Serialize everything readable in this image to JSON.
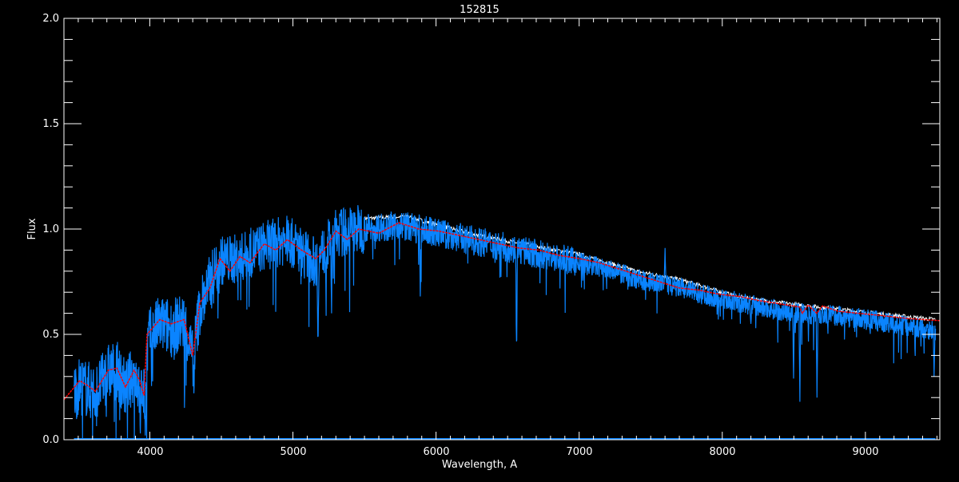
{
  "chart_data": {
    "type": "line",
    "title": "152815",
    "xlabel": "Wavelength, A",
    "ylabel": "Flux",
    "xlim": [
      3400,
      9520
    ],
    "ylim": [
      0.0,
      2.0
    ],
    "x_ticks": [
      "4000",
      "5000",
      "6000",
      "7000",
      "8000",
      "9000"
    ],
    "y_ticks": [
      "0.0",
      "0.5",
      "1.0",
      "1.5",
      "2.0"
    ],
    "grid": false,
    "background": "#000000",
    "series": [
      {
        "role": "observed",
        "color": "#0a84ff",
        "x_range": [
          3470,
          9490
        ],
        "continuum": [
          [
            3470,
            0.22
          ],
          [
            3510,
            0.26
          ],
          [
            3620,
            0.22
          ],
          [
            3710,
            0.32
          ],
          [
            3770,
            0.33
          ],
          [
            3830,
            0.24
          ],
          [
            3890,
            0.32
          ],
          [
            3960,
            0.2
          ],
          [
            3990,
            0.48
          ],
          [
            4070,
            0.55
          ],
          [
            4150,
            0.53
          ],
          [
            4240,
            0.56
          ],
          [
            4300,
            0.38
          ],
          [
            4350,
            0.63
          ],
          [
            4490,
            0.85
          ],
          [
            4630,
            0.86
          ],
          [
            4800,
            0.92
          ],
          [
            4960,
            0.95
          ],
          [
            5160,
            0.84
          ],
          [
            5300,
            0.98
          ],
          [
            5460,
            1.0
          ],
          [
            5740,
            1.02
          ],
          [
            6020,
            0.98
          ],
          [
            6300,
            0.94
          ],
          [
            6580,
            0.9
          ],
          [
            6860,
            0.86
          ],
          [
            7140,
            0.82
          ],
          [
            7420,
            0.76
          ],
          [
            7700,
            0.72
          ],
          [
            7980,
            0.67
          ],
          [
            8260,
            0.63
          ],
          [
            8540,
            0.6
          ],
          [
            8810,
            0.59
          ],
          [
            9100,
            0.56
          ],
          [
            9490,
            0.52
          ]
        ],
        "lines": [
          [
            3934,
            0.03
          ],
          [
            3968,
            0.02
          ],
          [
            4308,
            0.22
          ],
          [
            5175,
            0.42
          ],
          [
            5270,
            0.6
          ],
          [
            5890,
            0.68
          ],
          [
            6563,
            0.4
          ],
          [
            7600,
            0.91
          ],
          [
            8200,
            0.55
          ],
          [
            8498,
            0.29
          ],
          [
            8542,
            0.18
          ],
          [
            8662,
            0.2
          ],
          [
            9480,
            0.3
          ]
        ]
      },
      {
        "role": "comparison",
        "color": "#ffffff",
        "continuum": [
          [
            5500,
            1.05
          ],
          [
            5800,
            1.06
          ],
          [
            6000,
            1.02
          ],
          [
            6300,
            0.97
          ],
          [
            6600,
            0.93
          ],
          [
            7000,
            0.88
          ],
          [
            7400,
            0.8
          ],
          [
            7700,
            0.76
          ],
          [
            7900,
            0.72
          ],
          [
            8100,
            0.68
          ],
          [
            8400,
            0.65
          ],
          [
            8800,
            0.62
          ],
          [
            9200,
            0.59
          ],
          [
            9490,
            0.57
          ]
        ]
      },
      {
        "role": "model",
        "color": "#ff0000",
        "points": [
          [
            3400,
            0.19
          ],
          [
            3510,
            0.28
          ],
          [
            3560,
            0.26
          ],
          [
            3620,
            0.23
          ],
          [
            3710,
            0.33
          ],
          [
            3770,
            0.34
          ],
          [
            3830,
            0.25
          ],
          [
            3890,
            0.33
          ],
          [
            3930,
            0.28
          ],
          [
            3960,
            0.21
          ],
          [
            3980,
            0.5
          ],
          [
            4070,
            0.57
          ],
          [
            4150,
            0.55
          ],
          [
            4240,
            0.57
          ],
          [
            4300,
            0.4
          ],
          [
            4350,
            0.65
          ],
          [
            4420,
            0.72
          ],
          [
            4490,
            0.86
          ],
          [
            4560,
            0.8
          ],
          [
            4630,
            0.87
          ],
          [
            4700,
            0.84
          ],
          [
            4800,
            0.93
          ],
          [
            4880,
            0.9
          ],
          [
            4960,
            0.95
          ],
          [
            5060,
            0.9
          ],
          [
            5160,
            0.86
          ],
          [
            5220,
            0.9
          ],
          [
            5300,
            0.99
          ],
          [
            5380,
            0.95
          ],
          [
            5460,
            1.0
          ],
          [
            5600,
            0.98
          ],
          [
            5740,
            1.03
          ],
          [
            5880,
            1.0
          ],
          [
            6020,
            0.99
          ],
          [
            6160,
            0.97
          ],
          [
            6300,
            0.95
          ],
          [
            6440,
            0.93
          ],
          [
            6580,
            0.91
          ],
          [
            6720,
            0.9
          ],
          [
            6860,
            0.875
          ],
          [
            7000,
            0.86
          ],
          [
            7140,
            0.84
          ],
          [
            7280,
            0.81
          ],
          [
            7420,
            0.78
          ],
          [
            7560,
            0.75
          ],
          [
            7700,
            0.72
          ],
          [
            7840,
            0.71
          ],
          [
            7980,
            0.69
          ],
          [
            8120,
            0.68
          ],
          [
            8260,
            0.66
          ],
          [
            8400,
            0.645
          ],
          [
            8540,
            0.63
          ],
          [
            8560,
            0.6
          ],
          [
            8600,
            0.64
          ],
          [
            8660,
            0.6
          ],
          [
            8700,
            0.635
          ],
          [
            8810,
            0.61
          ],
          [
            8950,
            0.6
          ],
          [
            9100,
            0.59
          ],
          [
            9300,
            0.575
          ],
          [
            9520,
            0.565
          ]
        ]
      }
    ]
  }
}
